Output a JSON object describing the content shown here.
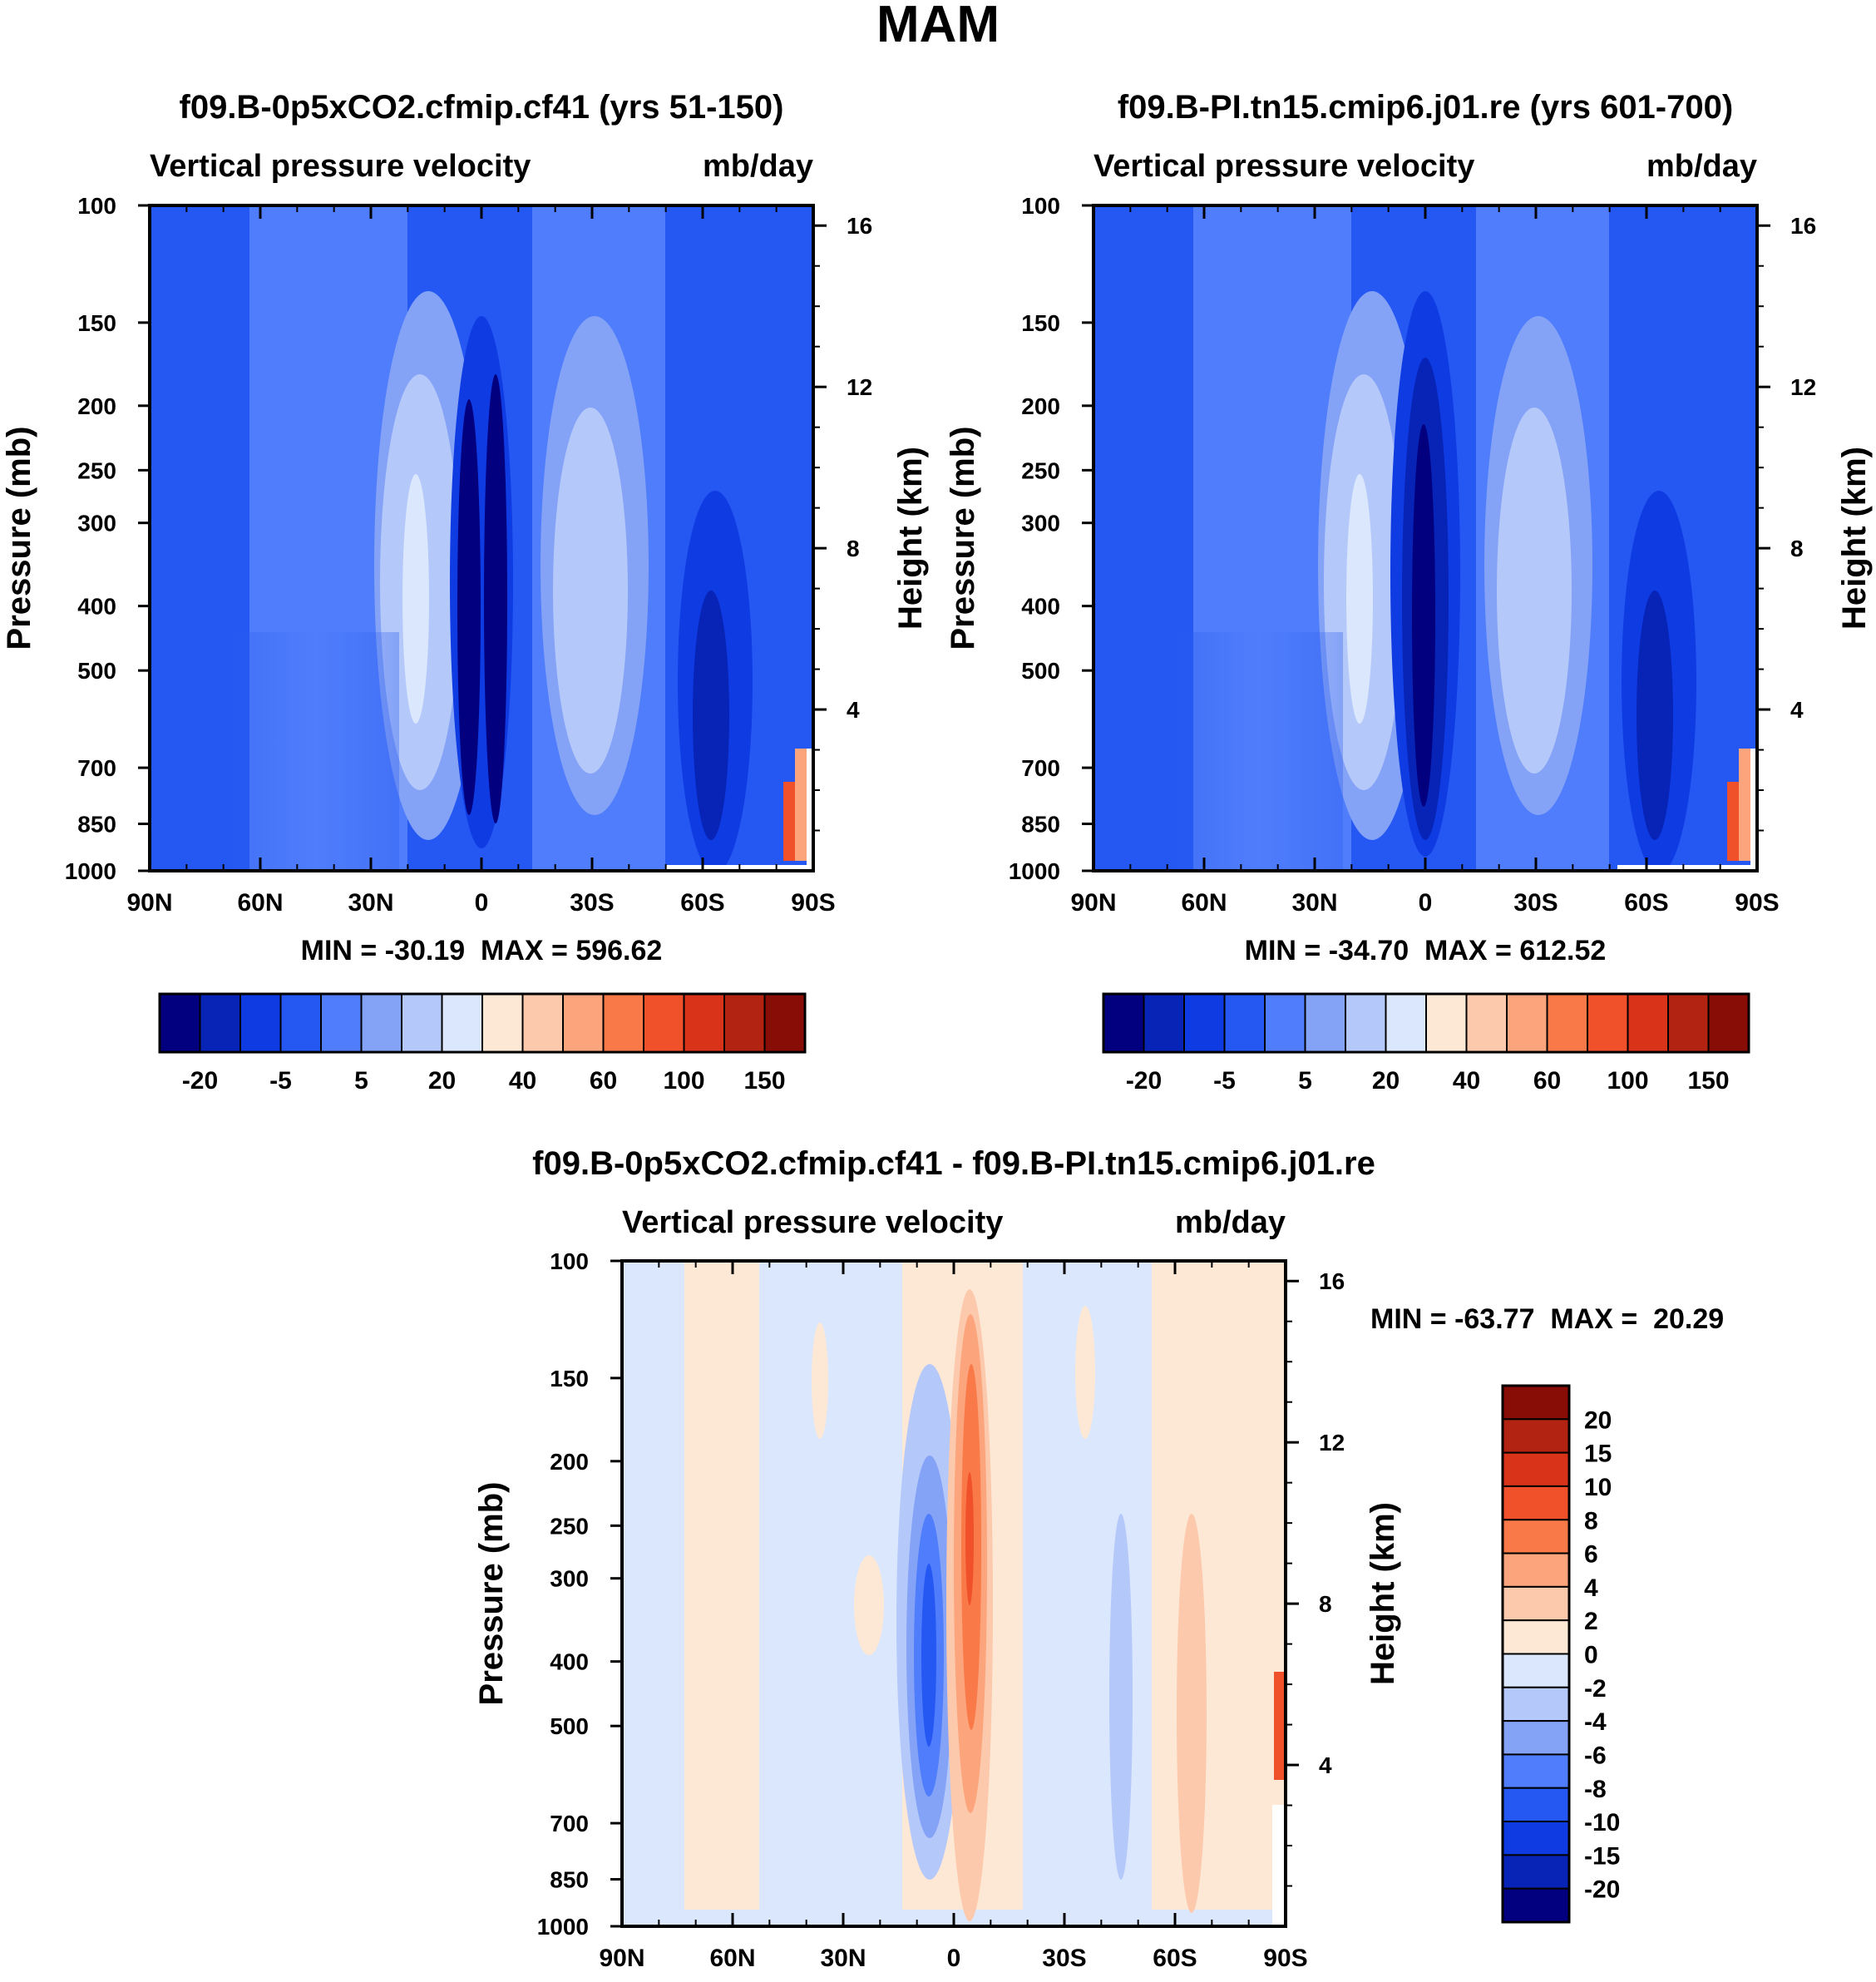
{
  "figure": {
    "title": "MAM"
  },
  "panels": [
    {
      "id": "p1",
      "title": "f09.B-0p5xCO2.cfmip.cf41 (yrs 51-150)",
      "left_label": "Vertical pressure velocity",
      "right_label": "mb/day",
      "stats": "MIN = -30.19  MAX = 596.62",
      "hotspot": true
    },
    {
      "id": "p2",
      "title": "f09.B-PI.tn15.cmip6.j01.re (yrs 601-700)",
      "left_label": "Vertical pressure velocity",
      "right_label": "mb/day",
      "stats": "MIN = -34.70  MAX = 612.52",
      "hotspot": true
    },
    {
      "id": "p3",
      "title": "f09.B-0p5xCO2.cfmip.cf41 - f09.B-PI.tn15.cmip6.j01.re",
      "left_label": "Vertical pressure velocity",
      "right_label": "mb/day",
      "stats": "MIN = -63.77  MAX =  20.29",
      "hotspot": false
    }
  ],
  "chart_data": [
    {
      "type": "heatmap",
      "title": "f09.B-0p5xCO2.cfmip.cf41 (yrs 51-150)",
      "variable": "Vertical pressure velocity",
      "units": "mb/day",
      "xlabel": "",
      "ylabel": "Pressure (mb)",
      "y2label": "Height (km)",
      "x_ticks": [
        "90N",
        "60N",
        "30N",
        "0",
        "30S",
        "60S",
        "90S"
      ],
      "y_ticks": [
        100,
        150,
        200,
        250,
        300,
        400,
        500,
        700,
        850,
        1000
      ],
      "y2_ticks": [
        4,
        8,
        12,
        16
      ],
      "xlim": [
        90,
        -90
      ],
      "ylim": [
        1000,
        100
      ],
      "y_scale": "log",
      "min": -30.19,
      "max": 596.62,
      "colorbar": {
        "orientation": "horizontal",
        "levels": [
          -30,
          -20,
          -10,
          -5,
          0,
          5,
          10,
          20,
          30,
          40,
          50,
          60,
          80,
          100,
          125,
          150
        ],
        "labels": [
          "-20",
          "-5",
          "5",
          "20",
          "40",
          "60",
          "100",
          "150"
        ],
        "colors": [
          "#02007f",
          "#0724b6",
          "#0f3be3",
          "#2558f3",
          "#4f7dfb",
          "#84a2f6",
          "#b5c8fa",
          "#dbe7fd",
          "#fde8d6",
          "#fcc9ac",
          "#fca47c",
          "#f97a48",
          "#f0502a",
          "#d9341a",
          "#b22411",
          "#870d06"
        ]
      }
    },
    {
      "type": "heatmap",
      "title": "f09.B-PI.tn15.cmip6.j01.re (yrs 601-700)",
      "variable": "Vertical pressure velocity",
      "units": "mb/day",
      "xlabel": "",
      "ylabel": "Pressure (mb)",
      "y2label": "Height (km)",
      "x_ticks": [
        "90N",
        "60N",
        "30N",
        "0",
        "30S",
        "60S",
        "90S"
      ],
      "y_ticks": [
        100,
        150,
        200,
        250,
        300,
        400,
        500,
        700,
        850,
        1000
      ],
      "y2_ticks": [
        4,
        8,
        12,
        16
      ],
      "xlim": [
        90,
        -90
      ],
      "ylim": [
        1000,
        100
      ],
      "y_scale": "log",
      "min": -34.7,
      "max": 612.52,
      "colorbar": {
        "orientation": "horizontal",
        "levels": [
          -30,
          -20,
          -10,
          -5,
          0,
          5,
          10,
          20,
          30,
          40,
          50,
          60,
          80,
          100,
          125,
          150
        ],
        "labels": [
          "-20",
          "-5",
          "5",
          "20",
          "40",
          "60",
          "100",
          "150"
        ],
        "colors": [
          "#02007f",
          "#0724b6",
          "#0f3be3",
          "#2558f3",
          "#4f7dfb",
          "#84a2f6",
          "#b5c8fa",
          "#dbe7fd",
          "#fde8d6",
          "#fcc9ac",
          "#fca47c",
          "#f97a48",
          "#f0502a",
          "#d9341a",
          "#b22411",
          "#870d06"
        ]
      }
    },
    {
      "type": "heatmap",
      "title": "f09.B-0p5xCO2.cfmip.cf41 - f09.B-PI.tn15.cmip6.j01.re",
      "variable": "Vertical pressure velocity",
      "units": "mb/day",
      "xlabel": "",
      "ylabel": "Pressure (mb)",
      "y2label": "Height (km)",
      "x_ticks": [
        "90N",
        "60N",
        "30N",
        "0",
        "30S",
        "60S",
        "90S"
      ],
      "y_ticks": [
        100,
        150,
        200,
        250,
        300,
        400,
        500,
        700,
        850,
        1000
      ],
      "y2_ticks": [
        4,
        8,
        12,
        16
      ],
      "xlim": [
        90,
        -90
      ],
      "ylim": [
        1000,
        100
      ],
      "y_scale": "log",
      "min": -63.77,
      "max": 20.29,
      "colorbar": {
        "orientation": "vertical",
        "labels": [
          "20",
          "15",
          "10",
          "8",
          "6",
          "4",
          "2",
          "0",
          "-2",
          "-4",
          "-6",
          "-8",
          "-10",
          "-15",
          "-20"
        ],
        "colors": [
          "#870d06",
          "#b22411",
          "#d9341a",
          "#f0502a",
          "#f97a48",
          "#fca47c",
          "#fcc9ac",
          "#fde8d6",
          "#dbe7fd",
          "#b5c8fa",
          "#84a2f6",
          "#4f7dfb",
          "#2558f3",
          "#0f3be3",
          "#0724b6",
          "#02007f"
        ]
      }
    }
  ]
}
